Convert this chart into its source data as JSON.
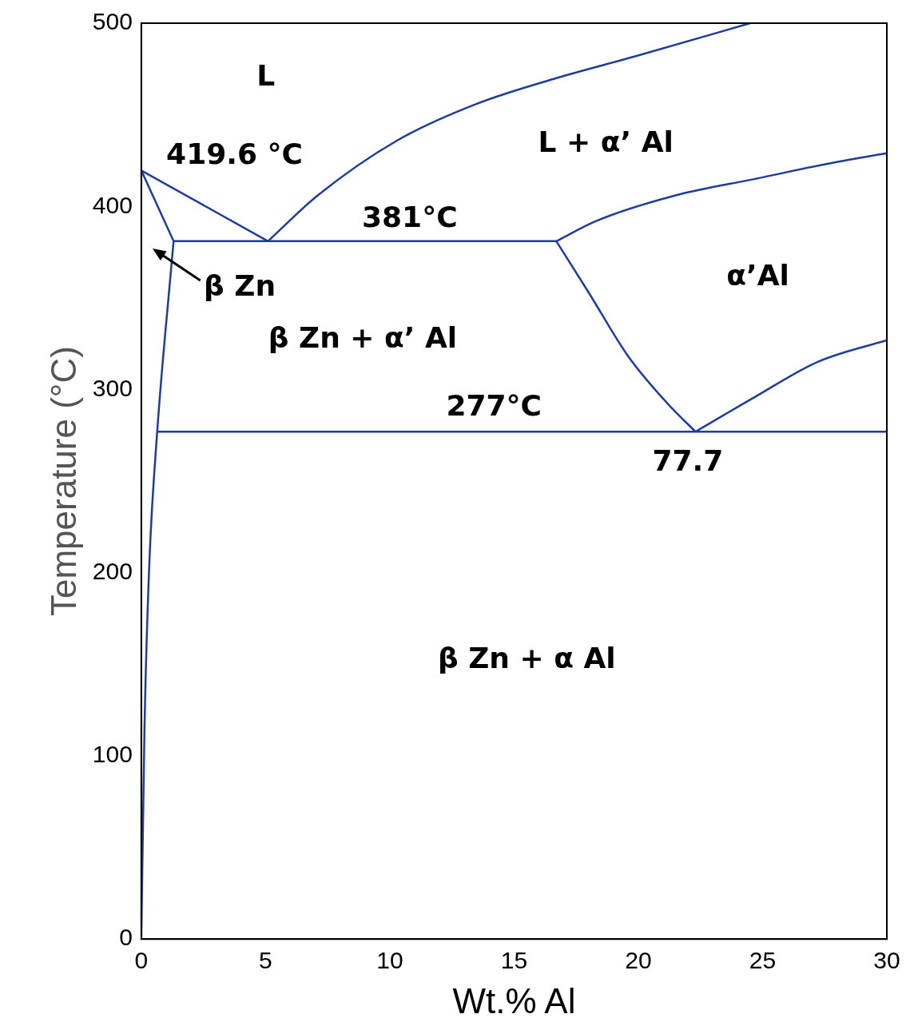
{
  "chart_data": {
    "type": "line",
    "xlabel": "Wt.% Al",
    "ylabel": "Temperature (°C)",
    "xlim": [
      0,
      30
    ],
    "xticks": [
      0,
      5,
      10,
      15,
      20,
      25,
      30
    ],
    "ylim": [
      0,
      500
    ],
    "yticks": [
      0,
      100,
      200,
      300,
      400,
      500
    ],
    "grid": false,
    "legend": false,
    "marker": "none",
    "line_style": "solid",
    "series": [
      {
        "color": "#1f3c9c",
        "x": [
          0,
          5.1
        ],
        "values": [
          419.6,
          381
        ]
      },
      {
        "color": "#1f3c9c",
        "x": [
          5.1,
          7.1,
          10.3,
          13.5,
          16.7,
          19.9,
          24.5
        ],
        "values": [
          381,
          406,
          436,
          456,
          470,
          482,
          500
        ]
      },
      {
        "color": "#1f3c9c",
        "x": [
          0,
          1.3
        ],
        "values": [
          419.6,
          381
        ]
      },
      {
        "color": "#1f3c9c",
        "x": [
          1.3,
          1.2,
          0.64,
          0.32,
          0.13,
          0
        ],
        "values": [
          381,
          366,
          277,
          204,
          116,
          0
        ]
      },
      {
        "color": "#1f3c9c",
        "x": [
          1.3,
          16.7
        ],
        "values": [
          381,
          381
        ]
      },
      {
        "color": "#1f3c9c",
        "x": [
          16.7,
          18.3,
          21.5,
          24.7,
          27.9,
          30
        ],
        "values": [
          381,
          392,
          406,
          415,
          424,
          429
        ]
      },
      {
        "color": "#1f3c9c",
        "x": [
          16.7,
          18,
          19.6,
          21.2,
          22.3
        ],
        "values": [
          381,
          353,
          318,
          292,
          277
        ]
      },
      {
        "color": "#1f3c9c",
        "x": [
          22.3,
          24.7,
          27.2,
          30
        ],
        "values": [
          277,
          296,
          315,
          327
        ]
      },
      {
        "color": "#1f3c9c",
        "x": [
          0.64,
          30
        ],
        "values": [
          277,
          277
        ]
      }
    ],
    "annotations": [
      "L",
      "419.6 °C",
      "381°C",
      "β Zn",
      "β Zn + α’ Al",
      "L + α’ Al",
      "α’Al",
      "277°C",
      "77.7",
      "β Zn + α Al"
    ]
  }
}
